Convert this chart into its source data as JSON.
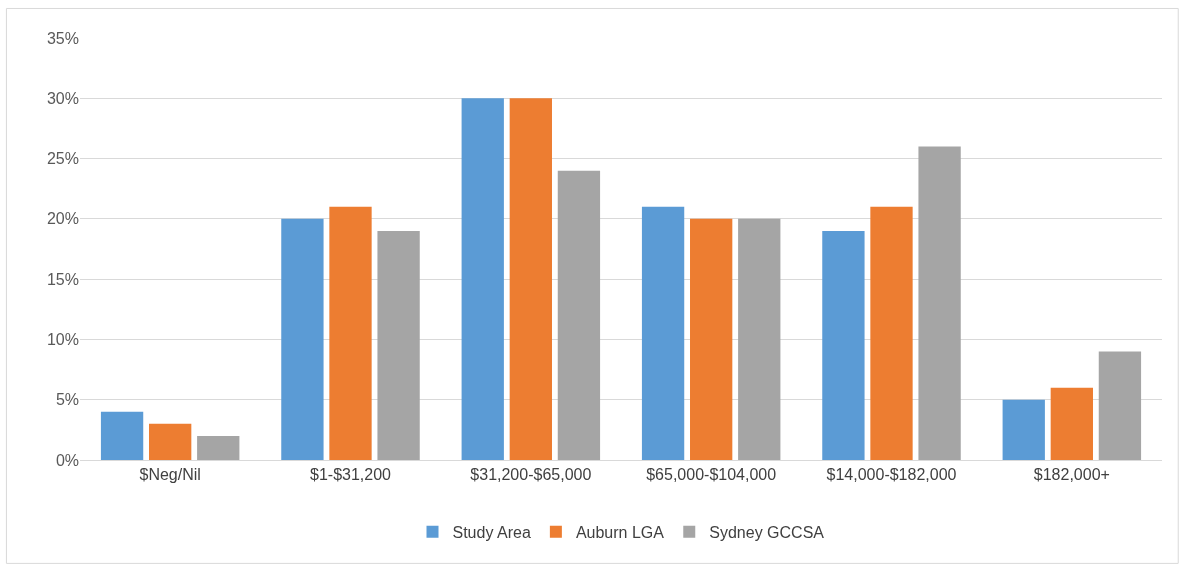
{
  "chart_data": {
    "type": "bar",
    "categories": [
      "$Neg/Nil",
      "$1-$31,200",
      "$31,200-$65,000",
      "$65,000-$104,000",
      "$14,000-$182,000",
      "$182,000+"
    ],
    "series": [
      {
        "name": "Study Area",
        "color": "#5b9bd5",
        "values": [
          4,
          20,
          30,
          21,
          19,
          5
        ]
      },
      {
        "name": "Auburn LGA",
        "color": "#ed7d31",
        "values": [
          3,
          21,
          30,
          20,
          21,
          6
        ]
      },
      {
        "name": "Sydney GCCSA",
        "color": "#a5a5a5",
        "values": [
          2,
          19,
          24,
          20,
          26,
          9
        ]
      }
    ],
    "ylim": [
      0,
      35
    ],
    "yticks": [
      {
        "value": 0,
        "label": "0%"
      },
      {
        "value": 5,
        "label": "5%"
      },
      {
        "value": 10,
        "label": "10%"
      },
      {
        "value": 15,
        "label": "15%"
      },
      {
        "value": 20,
        "label": "20%"
      },
      {
        "value": 25,
        "label": "25%"
      },
      {
        "value": 30,
        "label": "30%"
      },
      {
        "value": 35,
        "label": "35%"
      }
    ],
    "grid": "y",
    "legend": "bottom"
  }
}
